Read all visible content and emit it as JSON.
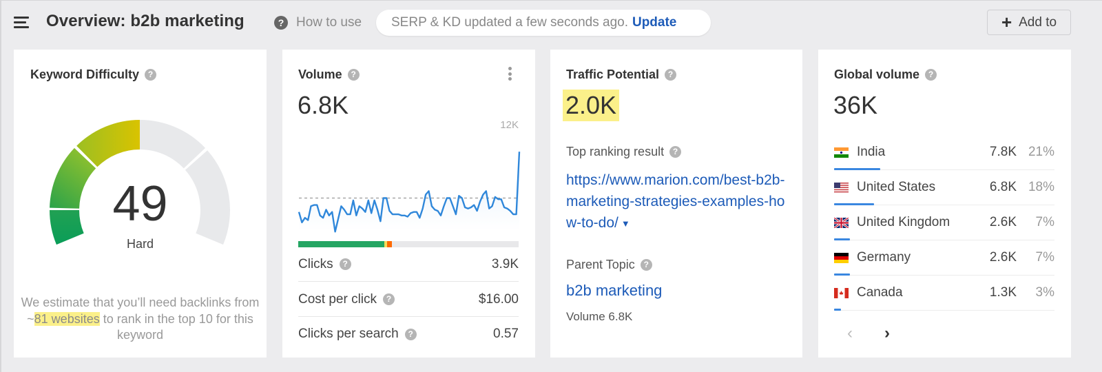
{
  "header": {
    "title": "Overview: b2b marketing",
    "how_to_use": "How to use",
    "status_text": "SERP & KD updated a few seconds ago.",
    "update_link": "Update",
    "add_to": "Add to"
  },
  "keyword_difficulty": {
    "title": "Keyword Difficulty",
    "value": "49",
    "label": "Hard",
    "note_before": "We estimate that you’ll need backlinks from ~",
    "note_highlight": "81 websites",
    "note_after": " to rank in the top 10 for this keyword",
    "colors": {
      "low": "#0a9d58",
      "mid": "#6ab53a",
      "high": "#d8c300",
      "empty": "#e8e9eb"
    }
  },
  "volume": {
    "title": "Volume",
    "value": "6.8K",
    "chart_max_label": "12K",
    "clicks_bar": {
      "organic_pct": 39,
      "yellow_pct": 1.3,
      "orange_pct": 2.3
    },
    "metrics": [
      {
        "label": "Clicks",
        "value": "3.9K"
      },
      {
        "label": "Cost per click",
        "value": "$16.00"
      },
      {
        "label": "Clicks per search",
        "value": "0.57"
      }
    ]
  },
  "traffic_potential": {
    "title": "Traffic Potential",
    "value": "2.0K",
    "top_ranking_label": "Top ranking result",
    "top_ranking_url": "https://www.marion.com/best-b2b-marketing-strategies-examples-how-to-do/",
    "parent_topic_label": "Parent Topic",
    "parent_topic": "b2b marketing",
    "parent_volume": "Volume 6.8K"
  },
  "global_volume": {
    "title": "Global volume",
    "value": "36K",
    "countries": [
      {
        "name": "India",
        "volume": "7.8K",
        "pct": "21%",
        "share": 21
      },
      {
        "name": "United States",
        "volume": "6.8K",
        "pct": "18%",
        "share": 18
      },
      {
        "name": "United Kingdom",
        "volume": "2.6K",
        "pct": "7%",
        "share": 7
      },
      {
        "name": "Germany",
        "volume": "2.6K",
        "pct": "7%",
        "share": 7
      },
      {
        "name": "Canada",
        "volume": "1.3K",
        "pct": "3%",
        "share": 3
      }
    ],
    "pager": {
      "prev": "‹",
      "next": "›"
    }
  },
  "chart_data": {
    "type": "area",
    "title": "Search volume history",
    "ylabel": "",
    "xlabel": "",
    "ylim": [
      0,
      12000
    ],
    "y_max_label": "12K",
    "average_line": 6800,
    "values": [
      5600,
      4700,
      5100,
      4900,
      6100,
      6200,
      6200,
      5300,
      5100,
      5800,
      5300,
      5600,
      3900,
      5000,
      6100,
      5800,
      5400,
      5400,
      6600,
      5300,
      6100,
      5900,
      5600,
      6600,
      5500,
      6600,
      5800,
      4800,
      6800,
      6800,
      5700,
      5400,
      5400,
      5400,
      5300,
      5300,
      5200,
      5500,
      5600,
      5600,
      5100,
      5900,
      7100,
      7400,
      6100,
      5800,
      5700,
      5300,
      6100,
      6800,
      6800,
      6100,
      5400,
      7000,
      6800,
      6000,
      5900,
      6000,
      6200,
      5700,
      6500,
      7100,
      7400,
      5900,
      6100,
      6900,
      6700,
      6700,
      6000,
      5900,
      5700,
      5400,
      5400,
      10800
    ]
  }
}
